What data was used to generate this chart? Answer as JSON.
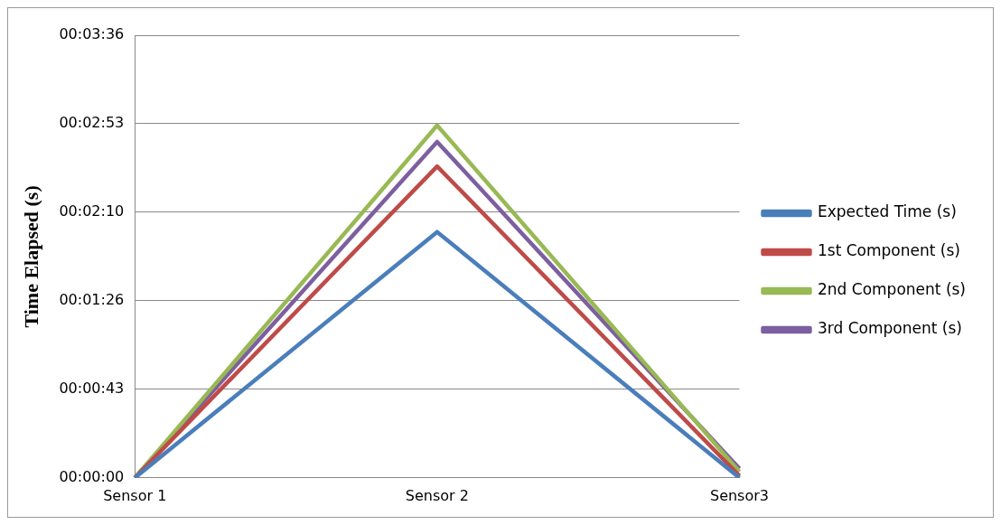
{
  "chart_data": {
    "type": "line",
    "ylabel": "Time Elapsed (s)",
    "categories": [
      "Sensor 1",
      "Sensor 2",
      "Sensor3"
    ],
    "series": [
      {
        "name": "Expected Time (s)",
        "color": "#4a7ebb",
        "values": [
          0,
          120,
          0
        ]
      },
      {
        "name": "1st Component (s)",
        "color": "#be4b48",
        "values": [
          0,
          152,
          1
        ]
      },
      {
        "name": "2nd Component (s)",
        "color": "#98b954",
        "values": [
          0,
          172,
          3
        ]
      },
      {
        "name": "3rd Component (s)",
        "color": "#7d5fa0",
        "values": [
          0,
          164,
          4.5
        ]
      }
    ],
    "ylim": [
      0,
      216
    ],
    "yticks": [
      {
        "value": 0,
        "label": "00:00:00"
      },
      {
        "value": 43.2,
        "label": "00:00:43"
      },
      {
        "value": 86.4,
        "label": "00:01:26"
      },
      {
        "value": 129.6,
        "label": "00:02:10"
      },
      {
        "value": 172.8,
        "label": "00:02:53"
      },
      {
        "value": 216,
        "label": "00:03:36"
      }
    ],
    "grid": "y",
    "legend": "right",
    "marker": "none",
    "line_style": "solid"
  }
}
